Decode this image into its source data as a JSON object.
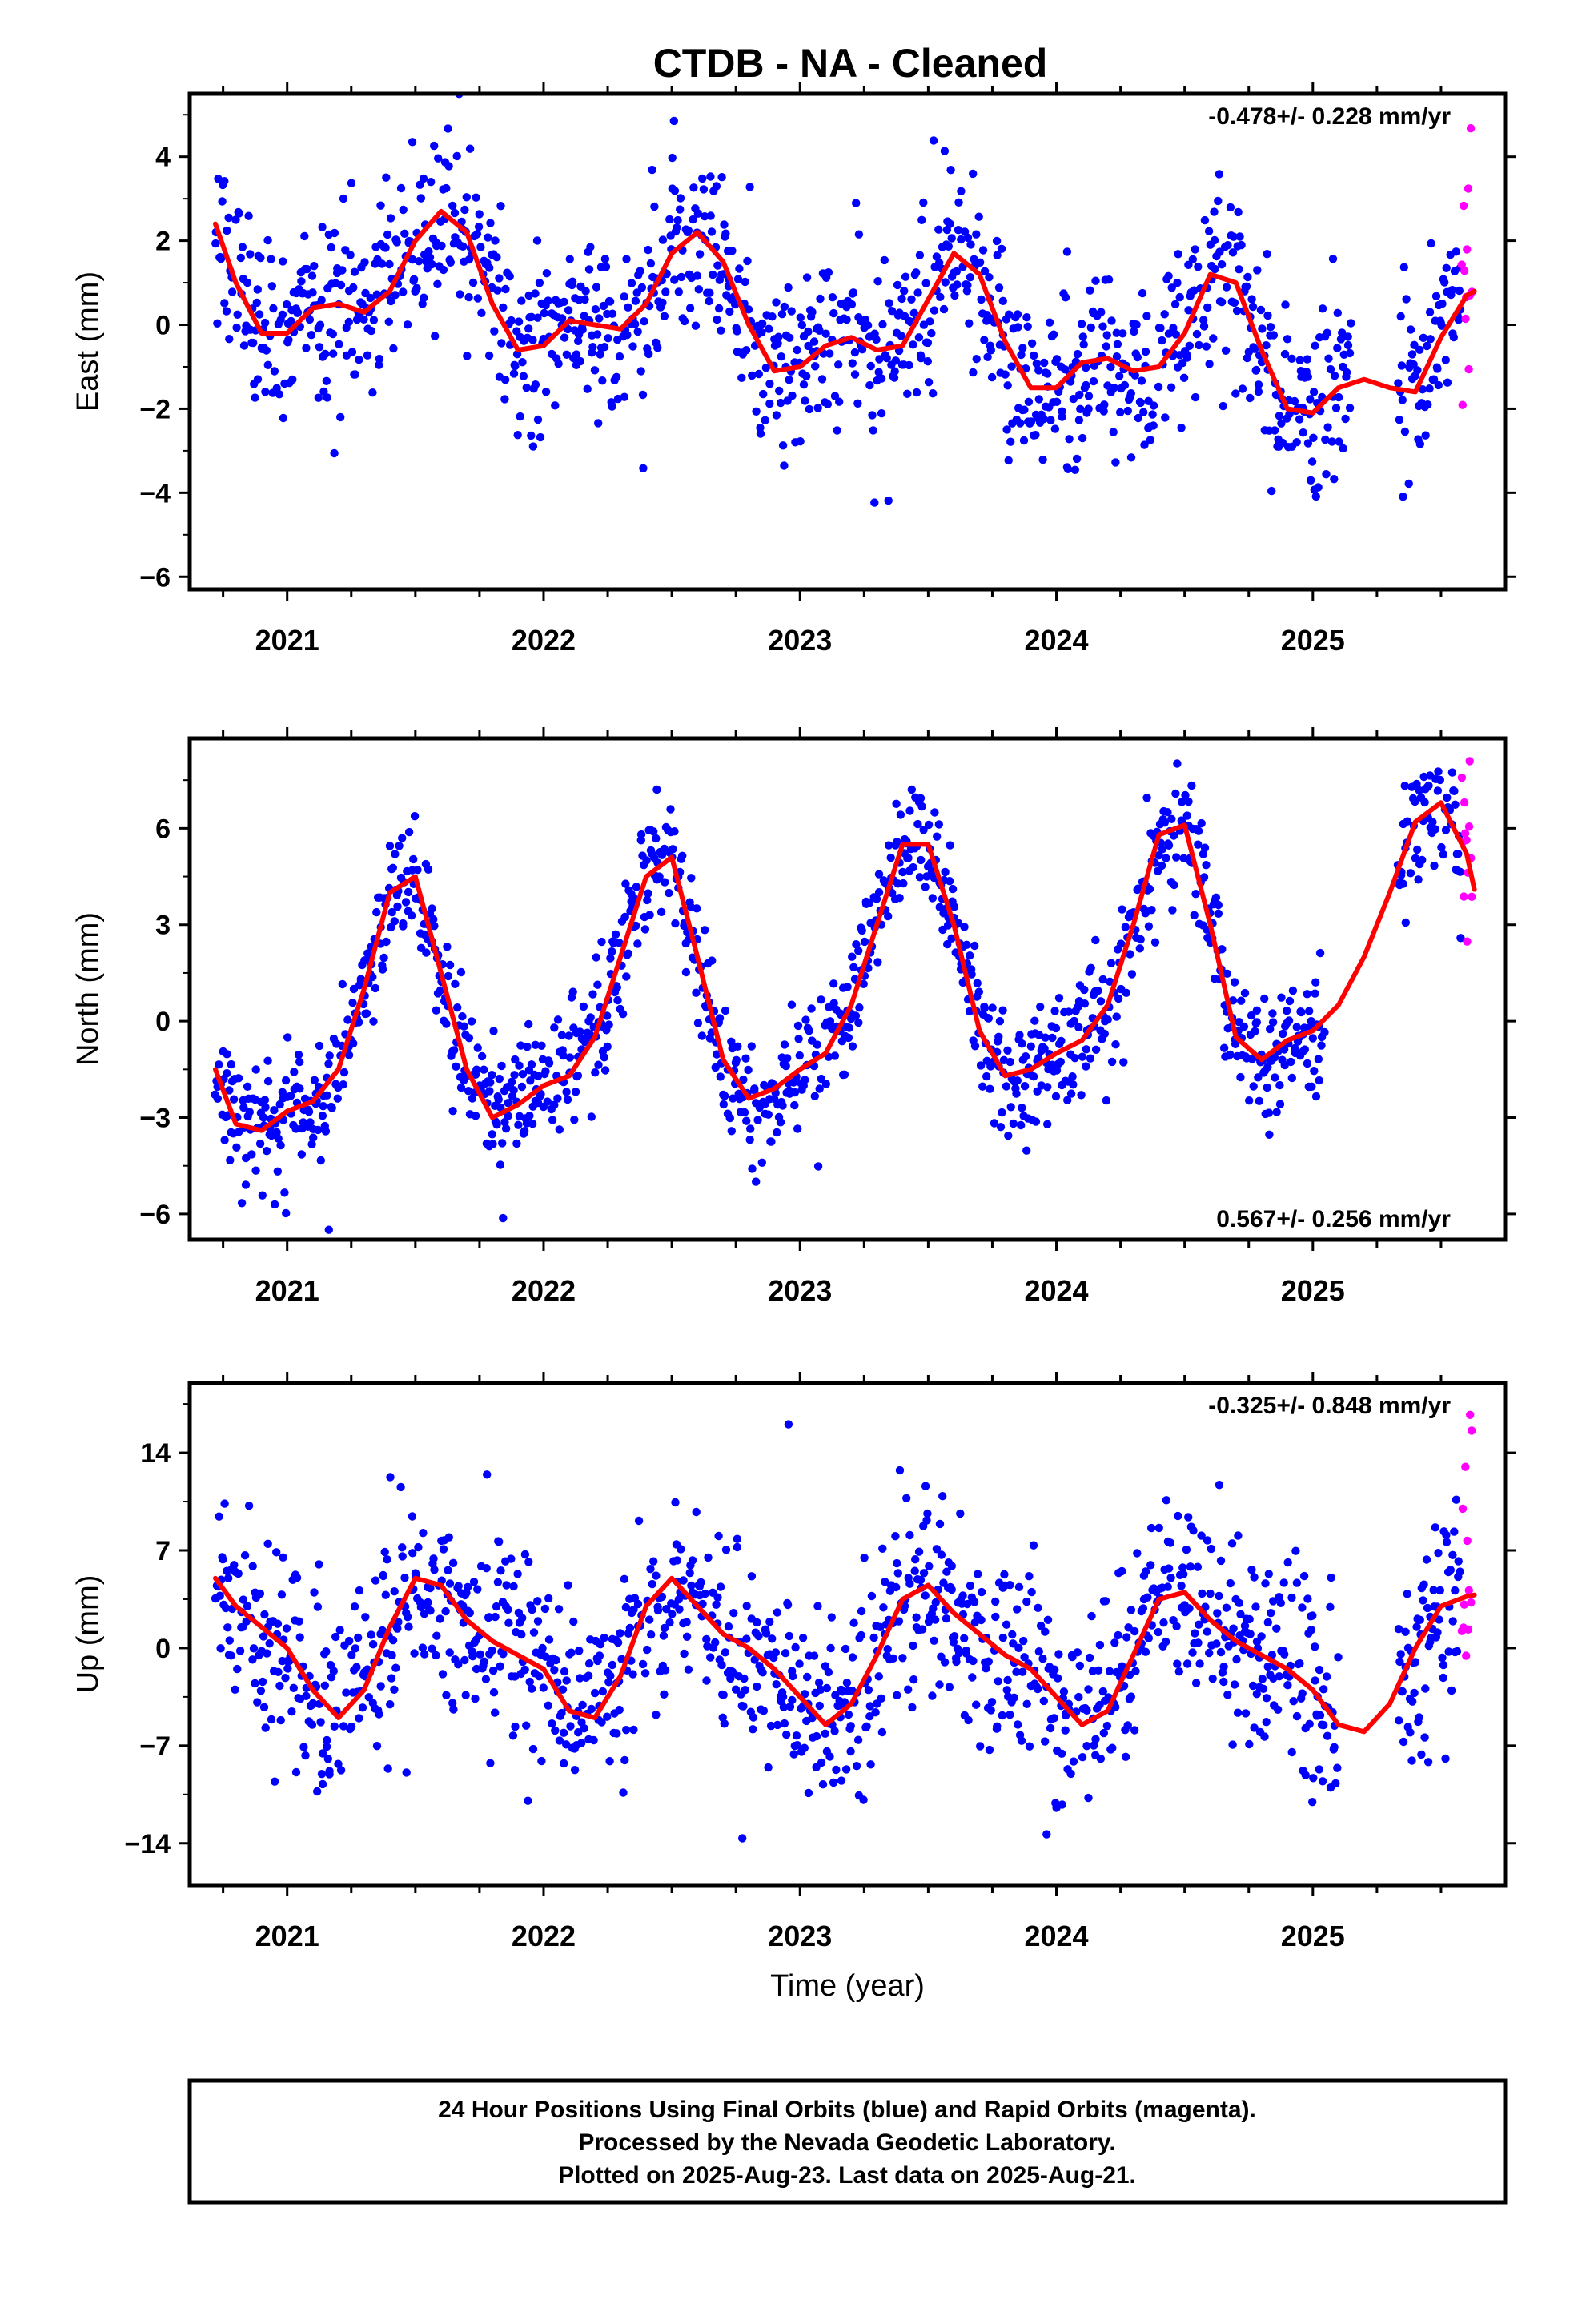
{
  "title": "CTDB  - NA - Cleaned",
  "colors": {
    "final_orbits": "#0000ff",
    "rapid_orbits": "#ff00ff",
    "model": "#ff0000",
    "frame": "#000000"
  },
  "footnote": {
    "lines": [
      "24 Hour Positions Using Final Orbits (blue) and Rapid Orbits (magenta).",
      "Processed by the Nevada Geodetic Laboratory.",
      "Plotted on 2025-Aug-23. Last data on 2025-Aug-21."
    ]
  },
  "chart_data": [
    {
      "type": "scatter",
      "panel": "east",
      "ylabel": "East (mm)",
      "xlabel": "",
      "xlim": [
        2020.62,
        2025.75
      ],
      "ylim": [
        -6.3,
        5.5
      ],
      "yticks": [
        -6,
        -4,
        -2,
        0,
        2,
        4
      ],
      "xticks": [
        2021,
        2022,
        2023,
        2024,
        2025
      ],
      "rate_label": "-0.478+/- 0.228 mm/yr",
      "rate_position": "top-right",
      "grid": false,
      "model_curve": {
        "name": "",
        "color": "#ff0000",
        "x": [
          2020.72,
          2020.8,
          2020.9,
          2021.0,
          2021.1,
          2021.2,
          2021.3,
          2021.4,
          2021.5,
          2021.6,
          2021.7,
          2021.8,
          2021.9,
          2022.0,
          2022.1,
          2022.2,
          2022.3,
          2022.4,
          2022.5,
          2022.6,
          2022.7,
          2022.8,
          2022.9,
          2023.0,
          2023.1,
          2023.2,
          2023.3,
          2023.4,
          2023.5,
          2023.6,
          2023.7,
          2023.8,
          2023.9,
          2024.0,
          2024.1,
          2024.2,
          2024.3,
          2024.4,
          2024.5,
          2024.6,
          2024.7,
          2024.8,
          2024.9,
          2025.0,
          2025.1,
          2025.2,
          2025.3,
          2025.4,
          2025.5,
          2025.6,
          2025.63
        ],
        "y": [
          2.4,
          1.0,
          -0.2,
          -0.2,
          0.4,
          0.5,
          0.3,
          0.8,
          2.0,
          2.7,
          2.2,
          0.5,
          -0.6,
          -0.5,
          0.1,
          0.0,
          -0.1,
          0.5,
          1.7,
          2.2,
          1.5,
          0.0,
          -1.1,
          -1.0,
          -0.5,
          -0.3,
          -0.6,
          -0.5,
          0.6,
          1.7,
          1.2,
          -0.4,
          -1.5,
          -1.5,
          -0.9,
          -0.8,
          -1.1,
          -1.0,
          -0.2,
          1.2,
          1.0,
          -0.6,
          -2.0,
          -2.1,
          -1.5,
          -1.3,
          -1.5,
          -1.6,
          -0.3,
          0.7,
          0.8
        ]
      },
      "seasonal": {
        "amp1": 1.25,
        "phase1": 0.62,
        "amp2": 0.55,
        "phase2": 0.1,
        "offset": 0.0,
        "trend": -0.478,
        "noise": 1.05,
        "points_per_year": 300,
        "start": 2020.72,
        "end": 2025.58,
        "gaps": [
          [
            2025.15,
            2025.33
          ]
        ],
        "rapid_start": 2025.58,
        "rapid_end": 2025.63
      }
    },
    {
      "type": "scatter",
      "panel": "north",
      "ylabel": "North (mm)",
      "xlabel": "",
      "xlim": [
        2020.62,
        2025.75
      ],
      "ylim": [
        -6.8,
        8.8
      ],
      "yticks": [
        -6,
        -3,
        0,
        3,
        6
      ],
      "xticks": [
        2021,
        2022,
        2023,
        2024,
        2025
      ],
      "rate_label": "0.567+/- 0.256 mm/yr",
      "rate_position": "bottom-right",
      "grid": false,
      "model_curve": {
        "name": "",
        "color": "#ff0000",
        "x": [
          2020.72,
          2020.8,
          2020.9,
          2021.0,
          2021.1,
          2021.2,
          2021.3,
          2021.4,
          2021.5,
          2021.6,
          2021.7,
          2021.8,
          2021.9,
          2022.0,
          2022.1,
          2022.2,
          2022.3,
          2022.4,
          2022.5,
          2022.6,
          2022.7,
          2022.8,
          2022.9,
          2023.0,
          2023.1,
          2023.2,
          2023.3,
          2023.4,
          2023.5,
          2023.6,
          2023.7,
          2023.8,
          2023.9,
          2024.0,
          2024.1,
          2024.2,
          2024.3,
          2024.4,
          2024.5,
          2024.6,
          2024.7,
          2024.8,
          2024.9,
          2025.0,
          2025.1,
          2025.2,
          2025.3,
          2025.4,
          2025.5,
          2025.6,
          2025.63
        ],
        "y": [
          -1.5,
          -3.2,
          -3.4,
          -2.8,
          -2.5,
          -1.5,
          1.0,
          4.0,
          4.5,
          1.5,
          -1.5,
          -3.0,
          -2.6,
          -2.0,
          -1.7,
          -0.5,
          2.0,
          4.5,
          5.1,
          2.0,
          -1.2,
          -2.4,
          -2.1,
          -1.5,
          -1.0,
          0.5,
          3.0,
          5.5,
          5.5,
          3.0,
          -0.3,
          -1.7,
          -1.5,
          -1.0,
          -0.6,
          0.5,
          3.0,
          5.8,
          6.1,
          3.0,
          -0.5,
          -1.2,
          -0.6,
          -0.3,
          0.5,
          2.0,
          4.0,
          6.2,
          6.8,
          5.2,
          4.1
        ]
      },
      "seasonal": {
        "amp1": 4.0,
        "phase1": 0.5,
        "amp2": 0.6,
        "phase2": 0.2,
        "offset": 1.0,
        "trend": 0.567,
        "noise": 0.95,
        "points_per_year": 300,
        "start": 2020.72,
        "end": 2025.58,
        "gaps": [
          [
            2025.05,
            2025.33
          ]
        ],
        "rapid_start": 2025.58,
        "rapid_end": 2025.63
      }
    },
    {
      "type": "scatter",
      "panel": "up",
      "ylabel": "Up (mm)",
      "xlabel": "Time (year)",
      "xlim": [
        2020.62,
        2025.75
      ],
      "ylim": [
        -17.0,
        19.0
      ],
      "yticks": [
        -14,
        -7,
        0,
        7,
        14
      ],
      "xticks": [
        2021,
        2022,
        2023,
        2024,
        2025
      ],
      "rate_label": "-0.325+/- 0.848 mm/yr",
      "rate_position": "top-right",
      "grid": false,
      "model_curve": {
        "name": "",
        "color": "#ff0000",
        "x": [
          2020.72,
          2020.8,
          2020.9,
          2021.0,
          2021.1,
          2021.2,
          2021.3,
          2021.4,
          2021.5,
          2021.6,
          2021.7,
          2021.8,
          2021.9,
          2022.0,
          2022.1,
          2022.2,
          2022.3,
          2022.4,
          2022.5,
          2022.6,
          2022.7,
          2022.8,
          2022.9,
          2023.0,
          2023.1,
          2023.2,
          2023.3,
          2023.4,
          2023.5,
          2023.6,
          2023.7,
          2023.8,
          2023.9,
          2024.0,
          2024.1,
          2024.2,
          2024.3,
          2024.4,
          2024.5,
          2024.6,
          2024.7,
          2024.8,
          2024.9,
          2025.0,
          2025.1,
          2025.2,
          2025.3,
          2025.4,
          2025.5,
          2025.6,
          2025.63
        ],
        "y": [
          5.0,
          3.0,
          1.5,
          0.0,
          -3.0,
          -5.0,
          -3.0,
          1.5,
          5.0,
          4.5,
          2.0,
          0.5,
          -0.5,
          -1.5,
          -4.5,
          -5.0,
          -2.0,
          3.0,
          5.0,
          3.0,
          1.0,
          0.0,
          -1.5,
          -3.5,
          -5.5,
          -4.0,
          -0.5,
          3.5,
          4.5,
          2.5,
          1.0,
          -0.5,
          -1.5,
          -3.5,
          -5.5,
          -4.5,
          -0.5,
          3.5,
          4.0,
          2.0,
          0.5,
          -0.5,
          -1.5,
          -3.0,
          -5.5,
          -6.0,
          -4.0,
          0.0,
          3.0,
          3.7,
          3.8
        ]
      },
      "seasonal": {
        "amp1": 4.8,
        "phase1": 0.62,
        "amp2": 1.0,
        "phase2": 0.1,
        "offset": 0.0,
        "trend": -0.325,
        "noise": 3.6,
        "points_per_year": 300,
        "start": 2020.72,
        "end": 2025.58,
        "gaps": [
          [
            2025.1,
            2025.33
          ]
        ],
        "rapid_start": 2025.58,
        "rapid_end": 2025.63
      }
    }
  ]
}
